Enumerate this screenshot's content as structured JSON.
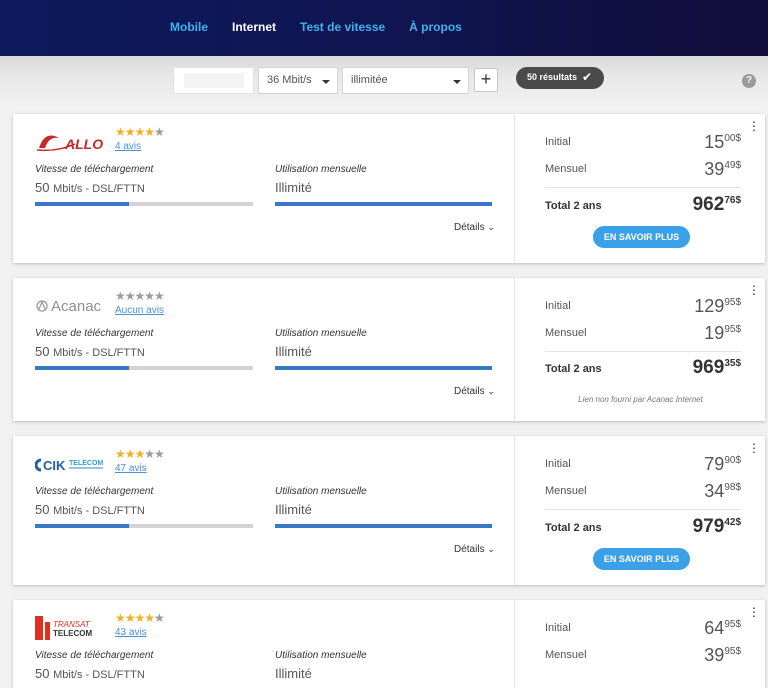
{
  "nav": {
    "items": [
      {
        "label": "Mobile",
        "active": false
      },
      {
        "label": "Internet",
        "active": true
      },
      {
        "label": "Test de vitesse",
        "active": false
      },
      {
        "label": "À propos",
        "active": false
      }
    ]
  },
  "filters": {
    "speed": "36 Mbit/s",
    "usage": "illimitée",
    "results": "50 résultats"
  },
  "common": {
    "speed_label": "Vitesse de téléchargement",
    "usage_label": "Utilisation mensuelle",
    "details": "Détails",
    "initial_label": "Initial",
    "monthly_label": "Mensuel",
    "total_label": "Total 2 ans",
    "cta": "EN SAVOIR PLUS",
    "currency": "$"
  },
  "plans": [
    {
      "provider": "ALLO",
      "stars": 4,
      "reviews": "4 avis",
      "speed_value": "50",
      "speed_unit": "Mbit/s - DSL/FTTN",
      "speed_fill": 0.43,
      "usage": "Illimité",
      "initial_int": "15",
      "initial_cents": "00",
      "monthly_int": "39",
      "monthly_cents": "49",
      "total_int": "962",
      "total_cents": "76",
      "has_cta": true
    },
    {
      "provider": "Acanac",
      "stars": 0,
      "reviews": "Aucun avis",
      "speed_value": "50",
      "speed_unit": "Mbit/s - DSL/FTTN",
      "speed_fill": 0.43,
      "usage": "Illimité",
      "initial_int": "129",
      "initial_cents": "95",
      "monthly_int": "19",
      "monthly_cents": "95",
      "total_int": "969",
      "total_cents": "35",
      "has_cta": false,
      "note": "Lien non fourni par Acanac Internet"
    },
    {
      "provider": "CIK TELECOM",
      "stars": 3,
      "reviews": "47 avis",
      "speed_value": "50",
      "speed_unit": "Mbit/s - DSL/FTTN",
      "speed_fill": 0.43,
      "usage": "Illimité",
      "initial_int": "79",
      "initial_cents": "90",
      "monthly_int": "34",
      "monthly_cents": "98",
      "total_int": "979",
      "total_cents": "42",
      "has_cta": true
    },
    {
      "provider": "TRANSAT TELECOM",
      "stars": 4,
      "reviews": "43 avis",
      "speed_value": "50",
      "speed_unit": "Mbit/s - DSL/FTTN",
      "speed_fill": 0.43,
      "usage": "Illimité",
      "initial_int": "64",
      "initial_cents": "95",
      "monthly_int": "39",
      "monthly_cents": "95",
      "total_int": "",
      "total_cents": "",
      "has_cta": false
    }
  ],
  "colors": {
    "header_dark": "#101550",
    "nav_link": "#3fb3f0",
    "progress": "#3b77c9",
    "cta": "#3aa0e8",
    "star": "#f2b01e"
  },
  "icons": {
    "help": "help-circle-icon",
    "check": "check-icon",
    "more": "more-vertical-icon",
    "chevron": "chevron-down-icon"
  }
}
